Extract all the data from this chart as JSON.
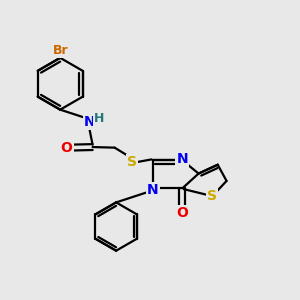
{
  "background_color": "#e8e8e8",
  "atom_colors": {
    "C": "#000000",
    "N": "#0000ee",
    "O": "#ee0000",
    "S": "#ccaa00",
    "Br": "#cc6600",
    "H": "#227777"
  },
  "bond_color": "#000000",
  "bond_width": 1.6,
  "font_size_atom": 10,
  "font_size_br": 9
}
